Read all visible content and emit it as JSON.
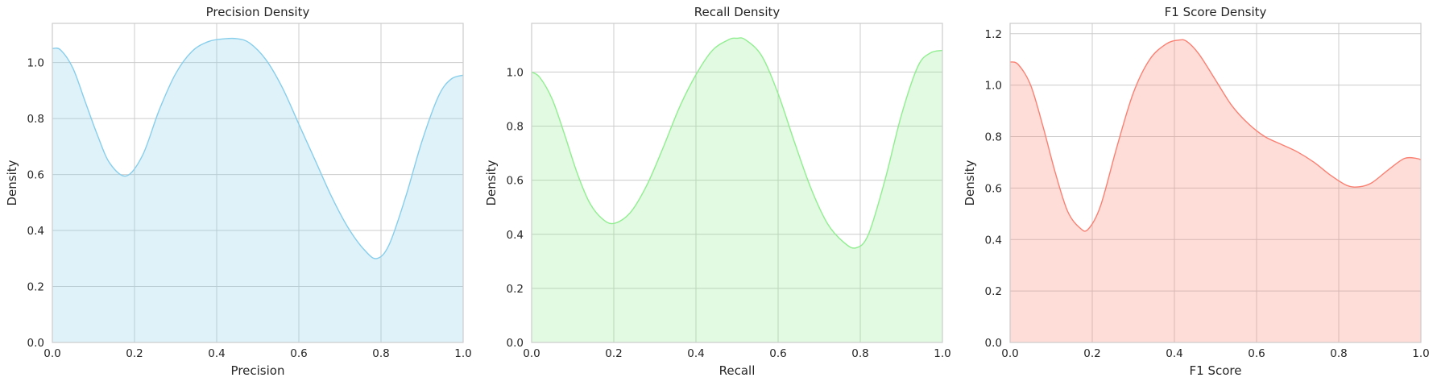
{
  "chart_data": [
    {
      "type": "area",
      "title": "Precision Density",
      "xlabel": "Precision",
      "ylabel": "Density",
      "xlim": [
        0,
        1
      ],
      "ylim": [
        0,
        1.14
      ],
      "xticks": [
        "0.0",
        "0.2",
        "0.4",
        "0.6",
        "0.8",
        "1.0"
      ],
      "yticks": [
        "0.0",
        "0.2",
        "0.4",
        "0.6",
        "0.8",
        "1.0"
      ],
      "grid": true,
      "color": "#87CEEB",
      "series": [
        {
          "x": [
            0,
            0.02,
            0.05,
            0.08,
            0.11,
            0.14,
            0.18,
            0.22,
            0.26,
            0.3,
            0.34,
            0.38,
            0.42,
            0.45,
            0.48,
            0.52,
            0.56,
            0.6,
            0.64,
            0.68,
            0.72,
            0.76,
            0.79,
            0.82,
            0.86,
            0.9,
            0.94,
            0.97,
            1.0
          ],
          "y": [
            1.05,
            1.045,
            0.98,
            0.86,
            0.74,
            0.64,
            0.595,
            0.67,
            0.83,
            0.96,
            1.04,
            1.075,
            1.085,
            1.085,
            1.07,
            1.01,
            0.91,
            0.78,
            0.65,
            0.52,
            0.41,
            0.33,
            0.3,
            0.35,
            0.52,
            0.72,
            0.88,
            0.94,
            0.955
          ]
        }
      ]
    },
    {
      "type": "area",
      "title": "Recall Density",
      "xlabel": "Recall",
      "ylabel": "Density",
      "xlim": [
        0,
        1
      ],
      "ylim": [
        0,
        1.18
      ],
      "xticks": [
        "0.0",
        "0.2",
        "0.4",
        "0.6",
        "0.8",
        "1.0"
      ],
      "yticks": [
        "0.0",
        "0.2",
        "0.4",
        "0.6",
        "0.8",
        "1.0"
      ],
      "grid": true,
      "color": "#90EE90",
      "series": [
        {
          "x": [
            0,
            0.02,
            0.05,
            0.08,
            0.11,
            0.14,
            0.17,
            0.2,
            0.24,
            0.28,
            0.32,
            0.36,
            0.4,
            0.44,
            0.48,
            0.5,
            0.52,
            0.56,
            0.6,
            0.64,
            0.68,
            0.72,
            0.76,
            0.79,
            0.82,
            0.86,
            0.9,
            0.94,
            0.97,
            1.0
          ],
          "y": [
            1.0,
            0.98,
            0.9,
            0.77,
            0.63,
            0.52,
            0.46,
            0.44,
            0.48,
            0.58,
            0.72,
            0.87,
            0.99,
            1.08,
            1.12,
            1.125,
            1.12,
            1.06,
            0.92,
            0.74,
            0.57,
            0.44,
            0.37,
            0.35,
            0.4,
            0.6,
            0.84,
            1.02,
            1.07,
            1.08
          ]
        }
      ]
    },
    {
      "type": "area",
      "title": "F1 Score Density",
      "xlabel": "F1 Score",
      "ylabel": "Density",
      "xlim": [
        0,
        1
      ],
      "ylim": [
        0,
        1.24
      ],
      "xticks": [
        "0.0",
        "0.2",
        "0.4",
        "0.6",
        "0.8",
        "1.0"
      ],
      "yticks": [
        "0.0",
        "0.2",
        "0.4",
        "0.6",
        "0.8",
        "1.0",
        "1.2"
      ],
      "grid": true,
      "color": "#FA8072",
      "series": [
        {
          "x": [
            0,
            0.02,
            0.05,
            0.08,
            0.11,
            0.14,
            0.17,
            0.19,
            0.22,
            0.26,
            0.3,
            0.34,
            0.38,
            0.41,
            0.43,
            0.46,
            0.5,
            0.54,
            0.58,
            0.62,
            0.66,
            0.7,
            0.74,
            0.78,
            0.82,
            0.85,
            0.88,
            0.92,
            0.96,
            0.99,
            1.0
          ],
          "y": [
            1.09,
            1.08,
            1.0,
            0.84,
            0.66,
            0.51,
            0.445,
            0.44,
            0.53,
            0.76,
            0.97,
            1.1,
            1.16,
            1.175,
            1.17,
            1.12,
            1.02,
            0.92,
            0.85,
            0.8,
            0.77,
            0.74,
            0.7,
            0.65,
            0.61,
            0.605,
            0.62,
            0.67,
            0.715,
            0.715,
            0.71
          ]
        }
      ]
    }
  ]
}
